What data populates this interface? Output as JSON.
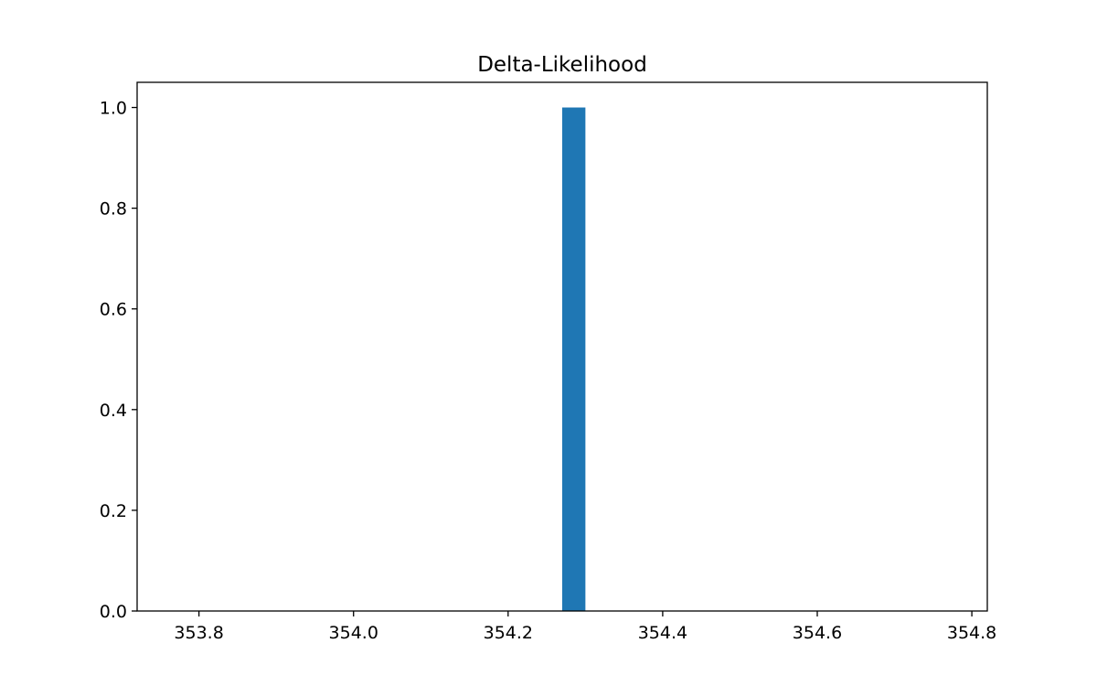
{
  "chart_data": {
    "type": "bar",
    "title": "Delta-Likelihood",
    "xlabel": "",
    "ylabel": "",
    "xlim": [
      353.72,
      354.82
    ],
    "ylim": [
      0,
      1.05
    ],
    "x_ticks": [
      {
        "value": 353.8,
        "label": "353.8"
      },
      {
        "value": 354.0,
        "label": "354.0"
      },
      {
        "value": 354.2,
        "label": "354.2"
      },
      {
        "value": 354.4,
        "label": "354.4"
      },
      {
        "value": 354.6,
        "label": "354.6"
      },
      {
        "value": 354.8,
        "label": "354.8"
      }
    ],
    "y_ticks": [
      {
        "value": 0.0,
        "label": "0.0"
      },
      {
        "value": 0.2,
        "label": "0.2"
      },
      {
        "value": 0.4,
        "label": "0.4"
      },
      {
        "value": 0.6,
        "label": "0.6"
      },
      {
        "value": 0.8,
        "label": "0.8"
      },
      {
        "value": 1.0,
        "label": "1.0"
      }
    ],
    "bins": [
      {
        "x0": 354.27,
        "x1": 354.3,
        "value": 1.0
      }
    ],
    "bar_color": "#1f77b4",
    "grid": false,
    "legend": "none"
  }
}
